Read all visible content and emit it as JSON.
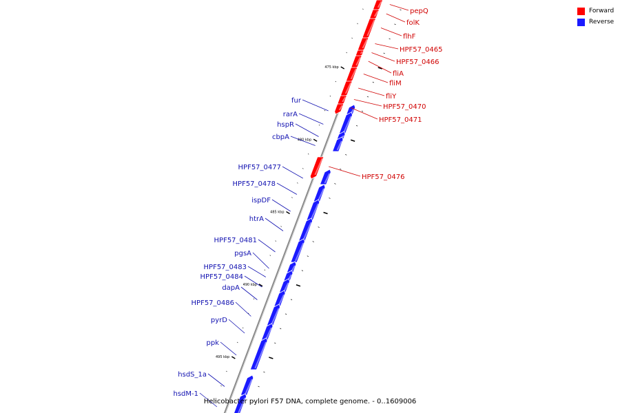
{
  "colors": {
    "forward": "#ff0000",
    "reverse": "#1a1aff",
    "forward_label": "#d00000",
    "reverse_label": "#1010b0",
    "backbone": "#8a8a8a"
  },
  "legend": {
    "forward_label": "Forward",
    "reverse_label": "Reverse"
  },
  "caption": "Helicobacter pylori F57 DNA, complete genome. - 0..1609006",
  "ticks": [
    {
      "label": "475 kbp",
      "kb": 475
    },
    {
      "label": "480 kbp",
      "kb": 480
    },
    {
      "label": "485 kbp",
      "kb": 485
    },
    {
      "label": "490 kbp",
      "kb": 490
    },
    {
      "label": "495 kbp",
      "kb": 495
    }
  ],
  "genes": [
    {
      "name": "pepQ",
      "strand": "forward"
    },
    {
      "name": "folK",
      "strand": "forward"
    },
    {
      "name": "flhF",
      "strand": "forward"
    },
    {
      "name": "HPF57_0465",
      "strand": "forward"
    },
    {
      "name": "HPF57_0466",
      "strand": "forward"
    },
    {
      "name": "fliA",
      "strand": "forward"
    },
    {
      "name": "fliM",
      "strand": "forward"
    },
    {
      "name": "fliY",
      "strand": "forward"
    },
    {
      "name": "HPF57_0470",
      "strand": "forward"
    },
    {
      "name": "HPF57_0471",
      "strand": "forward"
    },
    {
      "name": "HPF57_0476",
      "strand": "forward"
    },
    {
      "name": "fur",
      "strand": "reverse"
    },
    {
      "name": "rarA",
      "strand": "reverse"
    },
    {
      "name": "hspR",
      "strand": "reverse"
    },
    {
      "name": "cbpA",
      "strand": "reverse"
    },
    {
      "name": "HPF57_0477",
      "strand": "reverse"
    },
    {
      "name": "HPF57_0478",
      "strand": "reverse"
    },
    {
      "name": "ispDF",
      "strand": "reverse"
    },
    {
      "name": "htrA",
      "strand": "reverse"
    },
    {
      "name": "HPF57_0481",
      "strand": "reverse"
    },
    {
      "name": "pgsA",
      "strand": "reverse"
    },
    {
      "name": "HPF57_0483",
      "strand": "reverse"
    },
    {
      "name": "HPF57_0484",
      "strand": "reverse"
    },
    {
      "name": "dapA",
      "strand": "reverse"
    },
    {
      "name": "HPF57_0486",
      "strand": "reverse"
    },
    {
      "name": "pyrD",
      "strand": "reverse"
    },
    {
      "name": "ppk",
      "strand": "reverse"
    },
    {
      "name": "hsdS_1a",
      "strand": "reverse"
    },
    {
      "name": "hsdM-1",
      "strand": "reverse"
    }
  ]
}
